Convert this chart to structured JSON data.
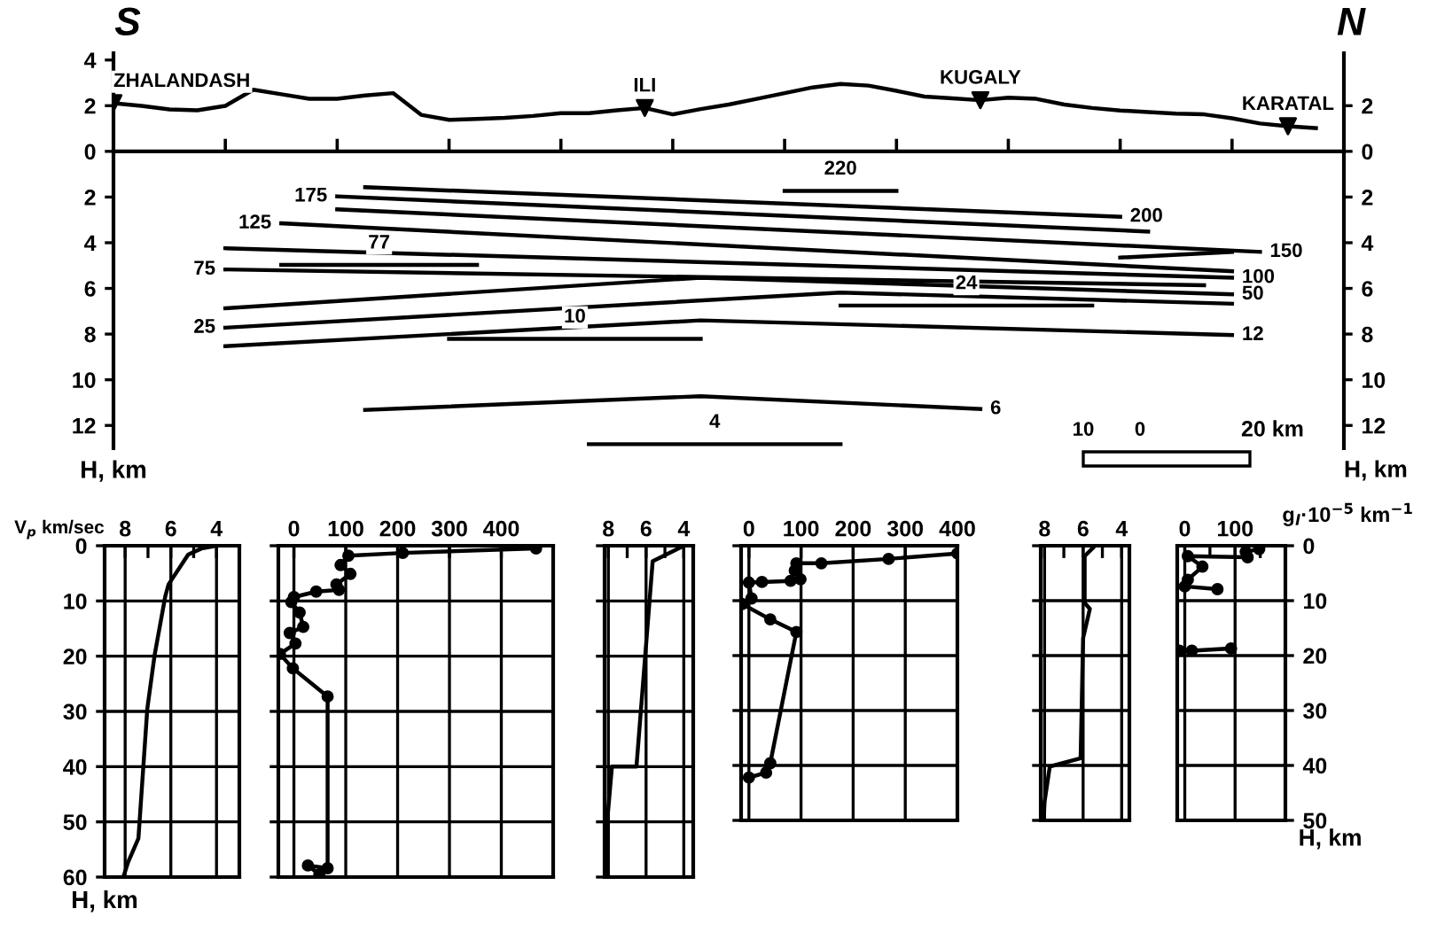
{
  "chart_data": [
    {
      "type": "line",
      "categories": [
        null,
        null,
        null,
        null,
        null,
        null,
        null,
        null,
        null,
        null,
        null,
        null,
        null,
        null,
        null,
        null,
        null,
        null,
        null,
        null,
        null,
        null,
        null,
        null,
        null,
        null,
        null,
        null,
        null,
        null,
        null,
        null,
        null,
        null,
        null,
        null,
        null,
        null,
        null,
        null,
        null,
        null,
        null,
        null,
        null
      ],
      "ylim": [
        -13,
        4.3
      ],
      "yticks": [
        {
          "value": -12,
          "label": "12"
        },
        {
          "value": -10,
          "label": "10"
        },
        {
          "value": -8,
          "label": "8"
        },
        {
          "value": -6,
          "label": "6"
        },
        {
          "value": -4,
          "label": "4"
        },
        {
          "value": -2,
          "label": "2"
        },
        0,
        2,
        4
      ],
      "y2lim": [
        -13,
        4.3
      ],
      "y2ticks": [
        {
          "value": -12,
          "label": "12"
        },
        {
          "value": -10,
          "label": "10"
        },
        {
          "value": -8,
          "label": "8"
        },
        {
          "value": -6,
          "label": "6"
        },
        {
          "value": -4,
          "label": "4"
        },
        {
          "value": -2,
          "label": "2"
        },
        0,
        2
      ],
      "ylabel": "H, km",
      "y2label": "H, km",
      "tick_labels": "y",
      "grid": false,
      "marker": "none",
      "line_style": "solid",
      "series": [
        {
          "color": "#000000",
          "values": [
            2.11,
            1.99,
            1.84,
            1.8,
            1.99,
            2.7,
            2.5,
            2.3,
            2.3,
            2.45,
            2.55,
            1.6,
            1.38,
            1.42,
            1.47,
            1.55,
            1.67,
            1.67,
            1.8,
            1.9,
            1.62,
            1.85,
            2.05,
            2.3,
            2.55,
            2.8,
            2.95,
            2.88,
            2.65,
            2.4,
            2.32,
            2.24,
            2.35,
            2.3,
            2.05,
            1.9,
            1.79,
            1.72,
            1.65,
            1.62,
            1.45,
            1.22,
            1.1,
            1.02,
            null
          ]
        },
        {
          "type": "scatter",
          "marker": "triangle",
          "color": "#000000",
          "values": [
            2.11,
            null,
            null,
            null,
            null,
            null,
            null,
            null,
            null,
            null,
            null,
            null,
            null,
            null,
            null,
            null,
            null,
            null,
            null,
            1.9,
            null,
            null,
            null,
            null,
            null,
            null,
            null,
            null,
            null,
            null,
            null,
            2.24,
            null,
            null,
            null,
            null,
            null,
            null,
            null,
            null,
            null,
            null,
            1.1,
            null,
            null
          ]
        },
        {
          "color": "#000000",
          "values": [
            null,
            null,
            null,
            null,
            null,
            null,
            null,
            null,
            null,
            -1.57,
            null,
            null,
            null,
            null,
            null,
            null,
            null,
            null,
            null,
            null,
            null,
            null,
            null,
            null,
            null,
            null,
            null,
            null,
            null,
            null,
            null,
            null,
            null,
            null,
            null,
            null,
            -2.86,
            null,
            null,
            null,
            null,
            null,
            null,
            null,
            null
          ]
        },
        {
          "color": "#000000",
          "values": [
            null,
            null,
            null,
            null,
            null,
            null,
            null,
            null,
            -1.97,
            null,
            null,
            null,
            null,
            null,
            null,
            null,
            null,
            null,
            null,
            null,
            null,
            null,
            null,
            null,
            null,
            null,
            null,
            null,
            null,
            null,
            null,
            null,
            null,
            null,
            null,
            null,
            null,
            -3.51,
            null,
            null,
            null,
            null,
            null,
            null,
            null
          ]
        },
        {
          "color": "#000000",
          "values": [
            null,
            null,
            null,
            null,
            null,
            null,
            null,
            null,
            -2.54,
            null,
            null,
            null,
            null,
            null,
            null,
            null,
            null,
            null,
            null,
            null,
            null,
            null,
            null,
            null,
            null,
            null,
            null,
            null,
            null,
            null,
            null,
            null,
            null,
            null,
            null,
            null,
            null,
            null,
            null,
            null,
            null,
            -4.4,
            null,
            null,
            null
          ]
        },
        {
          "color": "#000000",
          "values": [
            null,
            null,
            null,
            null,
            null,
            null,
            -3.15,
            null,
            null,
            null,
            null,
            null,
            null,
            null,
            null,
            null,
            null,
            null,
            null,
            null,
            null,
            null,
            null,
            null,
            null,
            null,
            null,
            null,
            null,
            null,
            null,
            null,
            null,
            null,
            null,
            null,
            null,
            null,
            null,
            null,
            -5.25,
            null,
            null,
            null,
            null
          ]
        },
        {
          "color": "#000000",
          "values": [
            null,
            null,
            null,
            null,
            -4.24,
            null,
            null,
            null,
            null,
            null,
            null,
            null,
            null,
            null,
            null,
            null,
            null,
            null,
            null,
            null,
            null,
            null,
            null,
            null,
            null,
            null,
            null,
            null,
            null,
            null,
            null,
            null,
            null,
            null,
            null,
            null,
            null,
            null,
            null,
            null,
            -5.53,
            null,
            null,
            null,
            null
          ]
        },
        {
          "color": "#000000",
          "values": [
            null,
            null,
            null,
            null,
            -5.17,
            null,
            null,
            null,
            null,
            null,
            null,
            null,
            null,
            null,
            null,
            null,
            null,
            null,
            null,
            null,
            null,
            null,
            null,
            null,
            null,
            null,
            null,
            null,
            null,
            null,
            null,
            null,
            null,
            null,
            null,
            null,
            null,
            null,
            null,
            -5.86,
            null,
            null,
            null,
            null,
            null
          ]
        },
        {
          "color": "#000000",
          "values": [
            null,
            null,
            null,
            null,
            -6.87,
            null,
            null,
            null,
            null,
            null,
            null,
            null,
            null,
            null,
            null,
            null,
            null,
            null,
            null,
            null,
            null,
            -5.53,
            null,
            null,
            null,
            null,
            null,
            null,
            null,
            null,
            null,
            null,
            null,
            null,
            null,
            null,
            null,
            null,
            null,
            null,
            -6.26,
            null,
            null,
            null,
            null
          ]
        },
        {
          "color": "#000000",
          "values": [
            null,
            null,
            null,
            null,
            -7.72,
            null,
            null,
            null,
            null,
            null,
            null,
            null,
            null,
            null,
            null,
            null,
            null,
            null,
            null,
            null,
            null,
            null,
            null,
            null,
            null,
            null,
            -6.18,
            null,
            null,
            null,
            null,
            null,
            null,
            null,
            null,
            null,
            null,
            null,
            null,
            null,
            -6.67,
            null,
            null,
            null,
            null
          ]
        },
        {
          "color": "#000000",
          "values": [
            null,
            null,
            null,
            null,
            -8.53,
            null,
            null,
            null,
            null,
            null,
            null,
            null,
            null,
            null,
            null,
            null,
            null,
            null,
            null,
            null,
            null,
            -7.4,
            null,
            null,
            null,
            null,
            null,
            null,
            null,
            null,
            null,
            null,
            null,
            null,
            null,
            null,
            null,
            null,
            null,
            null,
            -8.04,
            null,
            null,
            null,
            null
          ]
        },
        {
          "color": "#000000",
          "values": [
            null,
            null,
            null,
            null,
            null,
            null,
            null,
            null,
            null,
            -11.32,
            null,
            null,
            null,
            null,
            null,
            null,
            null,
            null,
            null,
            null,
            null,
            -10.72,
            null,
            null,
            null,
            null,
            null,
            null,
            null,
            null,
            null,
            -11.28,
            null,
            null,
            null,
            null,
            null,
            null,
            null,
            null,
            null,
            null,
            null,
            null,
            null
          ]
        },
        {
          "color": "#000000",
          "values": [
            null,
            null,
            null,
            null,
            null,
            null,
            null,
            null,
            null,
            null,
            null,
            null,
            null,
            null,
            null,
            null,
            null,
            null,
            null,
            null,
            null,
            null,
            null,
            null,
            null,
            null,
            null,
            null,
            null,
            null,
            null,
            null,
            null,
            null,
            null,
            null,
            -4.65,
            null,
            null,
            null,
            -4.4,
            null,
            null,
            null,
            null
          ]
        },
        {
          "color": "#000000",
          "values": [
            null,
            null,
            null,
            null,
            null,
            null,
            null,
            null,
            null,
            null,
            null,
            null,
            null,
            null,
            null,
            null,
            null,
            null,
            null,
            null,
            null,
            null,
            null,
            null,
            -1.73,
            null,
            null,
            null,
            -1.73,
            null,
            null,
            null,
            null,
            null,
            null,
            null,
            null,
            null,
            null,
            null,
            null,
            null,
            null,
            null,
            null
          ]
        },
        {
          "color": "#000000",
          "values": [
            null,
            null,
            null,
            null,
            null,
            null,
            -4.97,
            null,
            null,
            null,
            null,
            null,
            null,
            -4.97,
            null,
            null,
            null,
            null,
            null,
            null,
            null,
            null,
            null,
            null,
            null,
            null,
            null,
            null,
            null,
            null,
            null,
            null,
            null,
            null,
            null,
            null,
            null,
            null,
            null,
            null,
            null,
            null,
            null,
            null,
            null
          ]
        },
        {
          "color": "#000000",
          "values": [
            null,
            null,
            null,
            null,
            null,
            null,
            null,
            null,
            null,
            null,
            null,
            null,
            null,
            null,
            null,
            null,
            null,
            null,
            null,
            null,
            null,
            null,
            null,
            null,
            null,
            null,
            -6.75,
            null,
            null,
            null,
            null,
            null,
            null,
            null,
            null,
            -6.75,
            null,
            null,
            null,
            null,
            null,
            null,
            null,
            null,
            null
          ]
        },
        {
          "color": "#000000",
          "values": [
            null,
            null,
            null,
            null,
            null,
            null,
            null,
            null,
            null,
            null,
            null,
            null,
            -8.21,
            null,
            null,
            null,
            null,
            null,
            null,
            null,
            null,
            -8.21,
            null,
            null,
            null,
            null,
            null,
            null,
            null,
            null,
            null,
            null,
            null,
            null,
            null,
            null,
            null,
            null,
            null,
            null,
            null,
            null,
            null,
            null,
            null
          ]
        },
        {
          "color": "#000000",
          "values": [
            null,
            null,
            null,
            null,
            null,
            null,
            null,
            null,
            null,
            null,
            null,
            null,
            null,
            null,
            null,
            null,
            null,
            -12.82,
            null,
            null,
            null,
            null,
            null,
            null,
            null,
            null,
            -12.82,
            null,
            null,
            null,
            null,
            null,
            null,
            null,
            null,
            null,
            null,
            null,
            null,
            null,
            null,
            null,
            null,
            null,
            null
          ]
        }
      ],
      "annotations": [
        "S",
        "N",
        "10",
        "0",
        "20 km",
        {
          "text": "ZHALANDASH",
          "y": 2.11
        },
        {
          "text": "ILI",
          "y": 1.9
        },
        {
          "text": "KUGALY",
          "y": 2.24
        },
        {
          "text": "KARATAL",
          "y": 1.1
        },
        {
          "text": "200",
          "y": -2.86
        },
        {
          "text": "175",
          "y": -1.97
        },
        {
          "text": "150",
          "y": -4.4
        },
        {
          "text": "125",
          "y": -3.15
        },
        {
          "text": "100",
          "y": -5.53
        },
        {
          "text": "75",
          "y": -5.17
        },
        {
          "text": "50",
          "y": -6.26
        },
        {
          "text": "25",
          "y": -7.72
        },
        {
          "text": "12",
          "y": -8.04
        },
        {
          "text": "6",
          "y": -11.28
        },
        {
          "text": "220",
          "y": -1.73
        },
        {
          "text": "77",
          "y": -4.97
        },
        {
          "text": "24",
          "y": -6.75
        },
        {
          "text": "10",
          "y": -8.21
        },
        {
          "text": "4",
          "y": -12.82
        }
      ]
    },
    {
      "type": "line",
      "xlabel": "V$_{p}$ km/sec",
      "ylabel": "H, km",
      "xlim": [
        8.9,
        3
      ],
      "xticks": [
        8,
        6,
        4,
        {
          "value": 7,
          "label": null
        },
        {
          "value": 5,
          "label": null
        },
        {
          "value": 3,
          "label": null
        }
      ],
      "ylim": [
        60,
        0
      ],
      "yticks": [
        0,
        10,
        20,
        30,
        40,
        50,
        60
      ],
      "grid": true,
      "marker": "none",
      "series": [
        {
          "color": "#000000",
          "x": [
            4.0,
            4.66,
            5.24,
            6.1,
            6.24,
            6.71,
            7.03,
            7.42,
            7.87,
            8.08
          ],
          "values": [
            0,
            0.5,
            1.6,
            7,
            9.1,
            19.8,
            29.5,
            53,
            57.3,
            60
          ]
        }
      ]
    },
    {
      "type": "line",
      "xlim": [
        -30,
        500
      ],
      "xticks": [
        0,
        100,
        200,
        300,
        400
      ],
      "ylim": [
        60,
        0
      ],
      "yticks": [
        0,
        10,
        20,
        30,
        40,
        50,
        60
      ],
      "tick_labels": "x",
      "grid": true,
      "marker": "circle",
      "series": [
        {
          "color": "#000000",
          "x": [
            467,
            210,
            105,
            90,
            109,
            82,
            87,
            43,
            0,
            -5,
            11,
            18,
            -8,
            3,
            -27,
            -2,
            65,
            65,
            27,
            49
          ],
          "values": [
            0.5,
            1.3,
            1.8,
            3.5,
            5.1,
            7,
            8,
            8.3,
            9.3,
            10.2,
            12.1,
            14.7,
            15.8,
            17.7,
            19.6,
            22.2,
            27.3,
            58.4,
            57.9,
            59.5
          ]
        }
      ]
    },
    {
      "type": "line",
      "xlim": [
        8.2,
        3.5
      ],
      "xticks": [
        8,
        6,
        4,
        {
          "value": 7,
          "label": null
        },
        {
          "value": 5,
          "label": null
        }
      ],
      "ylim": [
        60,
        0
      ],
      "yticks": [
        0,
        10,
        20,
        30,
        40,
        50,
        60
      ],
      "tick_labels": "x",
      "grid": true,
      "marker": "none",
      "series": [
        {
          "color": "#000000",
          "x": [
            4.0,
            5.65,
            6.51,
            7.81,
            8.03,
            8.05
          ],
          "values": [
            0,
            2.8,
            40,
            40,
            48.7,
            60
          ]
        }
      ]
    },
    {
      "type": "line",
      "xlim": [
        -15,
        400
      ],
      "xticks": [
        0,
        100,
        200,
        300,
        400
      ],
      "ylim": [
        50,
        0
      ],
      "yticks": [
        0,
        10,
        20,
        30,
        40,
        50
      ],
      "tick_labels": "x",
      "grid": true,
      "marker": "circle",
      "series": [
        {
          "color": "#000000",
          "x": [
            400,
            268,
            139,
            91,
            88,
            99,
            80,
            25,
            0,
            5,
            -13,
            41,
            91,
            41,
            33,
            0
          ],
          "values": [
            1.4,
            2.4,
            3.2,
            3.2,
            4.5,
            6.1,
            6.4,
            6.6,
            6.7,
            9.6,
            10.6,
            13.4,
            15.7,
            39.6,
            41.3,
            42.2
          ]
        }
      ]
    },
    {
      "type": "line",
      "xlim": [
        8.2,
        3.6
      ],
      "xticks": [
        8,
        6,
        4,
        {
          "value": 7,
          "label": null
        },
        {
          "value": 5,
          "label": null
        }
      ],
      "ylim": [
        50,
        0
      ],
      "yticks": [
        0,
        10,
        20,
        30,
        40,
        50
      ],
      "tick_labels": "x",
      "grid": true,
      "marker": "none",
      "series": [
        {
          "color": "#000000",
          "x": [
            5.47,
            5.92,
            5.92,
            5.65,
            6.0,
            6.13,
            7.73,
            8.0,
            8.05
          ],
          "values": [
            0.3,
            1.9,
            10.4,
            11.5,
            16.8,
            38.7,
            40.2,
            46.6,
            50
          ]
        }
      ]
    },
    {
      "type": "line",
      "xlabel": "g$_{l}$·10$^{−5}$ km$^{−1}$",
      "y2label": "H, km",
      "xlim": [
        -15,
        200
      ],
      "xticks": [
        0,
        100,
        {
          "value": 50,
          "label": null
        },
        {
          "value": 150,
          "label": null
        }
      ],
      "ylim": [
        50,
        0
      ],
      "yticks": [
        0,
        10,
        20,
        30,
        40,
        50
      ],
      "grid": true,
      "marker": "circle",
      "series": [
        {
          "color": "#000000",
          "x": [
            148,
            121,
            125,
            6,
            35,
            6,
            0,
            65,
            null,
            92,
            14,
            -11
          ],
          "values": [
            0.6,
            1.1,
            2.1,
            1.9,
            3.8,
            6.2,
            7.4,
            7.9,
            null,
            18.7,
            19.1,
            19.1
          ]
        }
      ]
    }
  ]
}
